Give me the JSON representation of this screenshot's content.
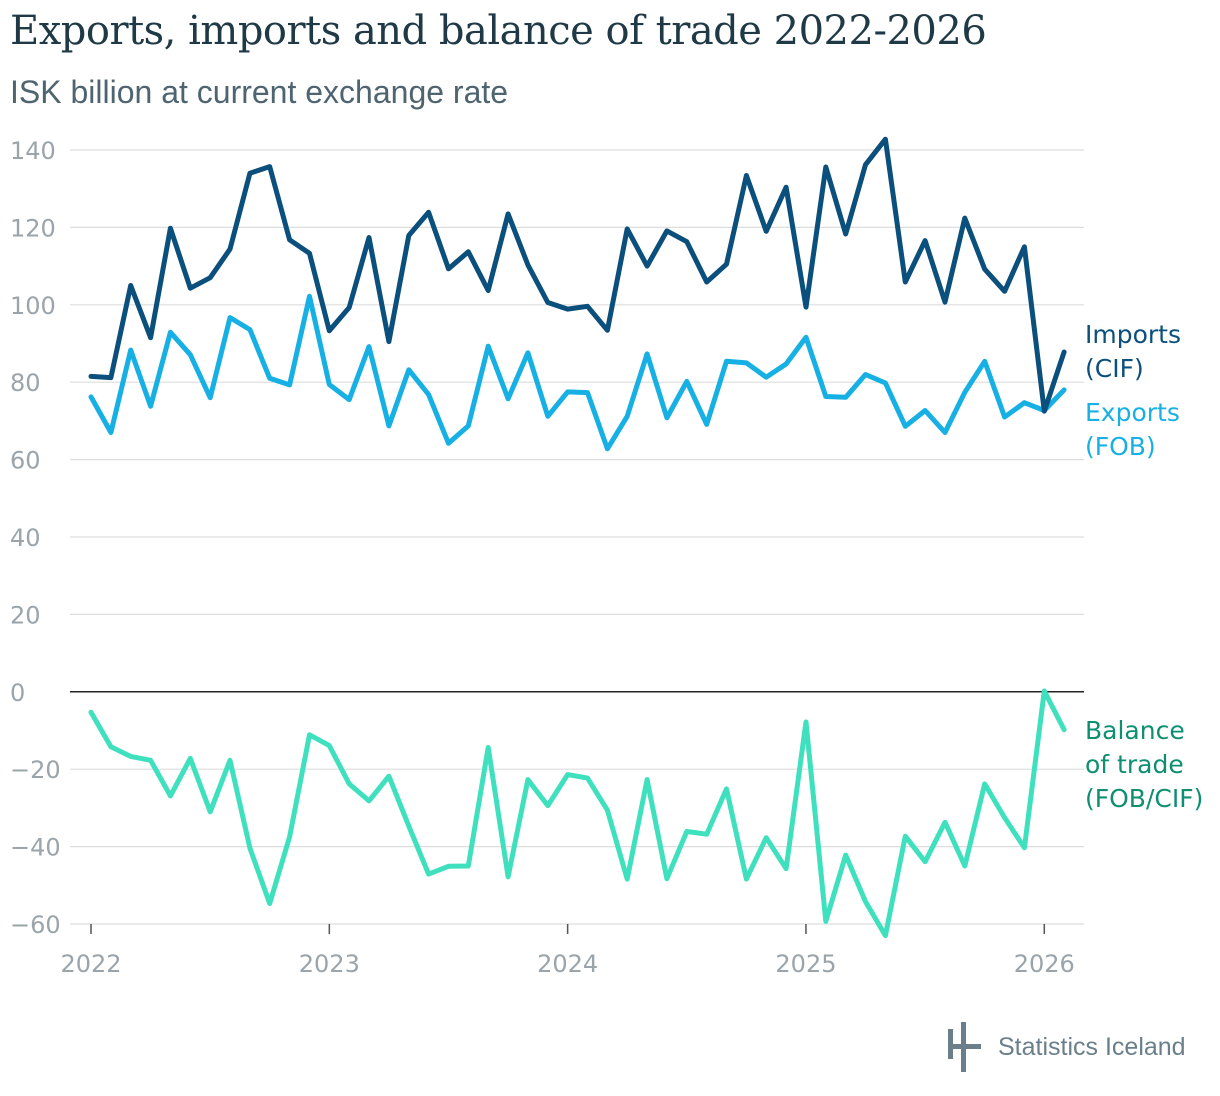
{
  "title": "Exports, imports and balance of trade 2022-2026",
  "subtitle": "ISK billion at current exchange rate",
  "source": "Statistics Iceland",
  "colors": {
    "imports": "#0b4f7c",
    "exports": "#17b0e4",
    "balance": "#3ee0be",
    "balance_label": "#0f8f72",
    "grid": "#dedede",
    "zero": "#222222",
    "tick": "#9aa4aa"
  },
  "chart_data": {
    "type": "line",
    "title": "Exports, imports and balance of trade 2022-2026",
    "xlabel": "",
    "ylabel": "ISK billion at current exchange rate",
    "ylim": [
      -60,
      140
    ],
    "y_ticks": [
      140,
      120,
      100,
      80,
      60,
      40,
      20,
      0,
      -20,
      -40,
      -60
    ],
    "y_tick_labels": [
      "140",
      "120",
      "100",
      "80",
      "60",
      "40",
      "20",
      "0",
      "−20",
      "−40",
      "−60"
    ],
    "x_ticks": [
      0,
      12,
      24,
      36,
      48
    ],
    "x_tick_labels": [
      "2022",
      "2023",
      "2024",
      "2025",
      "2026"
    ],
    "x_start": "2022-01",
    "x_step": "1 month",
    "grid": true,
    "series": [
      {
        "name": "Imports (CIF)",
        "label_lines": [
          "Imports",
          "(CIF)"
        ],
        "values": [
          81.5,
          81.2,
          105,
          91.5,
          119.8,
          104.3,
          107,
          114.4,
          134,
          135.7,
          116.8,
          113.3,
          93.3,
          99.3,
          117.4,
          90.5,
          117.9,
          123.9,
          109.3,
          113.7,
          103.7,
          123.5,
          110.3,
          100.6,
          98.9,
          99.6,
          93.4,
          119.6,
          110,
          119.1,
          116.3,
          105.9,
          110.5,
          133.4,
          119,
          130.4,
          99.4,
          135.6,
          118.3,
          136.2,
          142.8,
          105.9,
          116.6,
          100.7,
          122.4,
          109.2,
          103.5,
          115,
          72.5,
          87.8
        ]
      },
      {
        "name": "Exports (FOB)",
        "label_lines": [
          "Exports",
          "(FOB)"
        ],
        "values": [
          76.2,
          67,
          88.3,
          73.8,
          92.9,
          87.1,
          76,
          96.7,
          93.6,
          81,
          79.3,
          102.2,
          79.4,
          75.5,
          89.2,
          68.7,
          83.2,
          76.8,
          64.2,
          68.7,
          89.3,
          75.7,
          87.6,
          71.2,
          77.5,
          77.3,
          62.8,
          71.2,
          87.3,
          70.8,
          80.2,
          69.1,
          85.4,
          85,
          81.3,
          84.7,
          91.6,
          76.3,
          76.1,
          82,
          79.8,
          68.6,
          72.7,
          67,
          77.4,
          85.4,
          71,
          74.7,
          72.7,
          78
        ]
      },
      {
        "name": "Balance of trade (FOB/CIF)",
        "label_lines": [
          "Balance",
          "of trade",
          "(FOB/CIF)"
        ],
        "values": [
          -5.3,
          -14.2,
          -16.7,
          -17.7,
          -26.9,
          -17.2,
          -31,
          -17.7,
          -40.4,
          -54.7,
          -37.5,
          -11.1,
          -13.9,
          -23.8,
          -28.2,
          -21.8,
          -34.7,
          -47.1,
          -45.1,
          -45,
          -14.4,
          -47.8,
          -22.7,
          -29.4,
          -21.4,
          -22.3,
          -30.6,
          -48.4,
          -22.7,
          -48.3,
          -36.1,
          -36.8,
          -25.1,
          -48.4,
          -37.7,
          -45.7,
          -7.8,
          -59.3,
          -42.2,
          -54.2,
          -63,
          -37.3,
          -43.9,
          -33.7,
          -45,
          -23.8,
          -32.5,
          -40.3,
          0.2,
          -9.8
        ]
      }
    ]
  }
}
